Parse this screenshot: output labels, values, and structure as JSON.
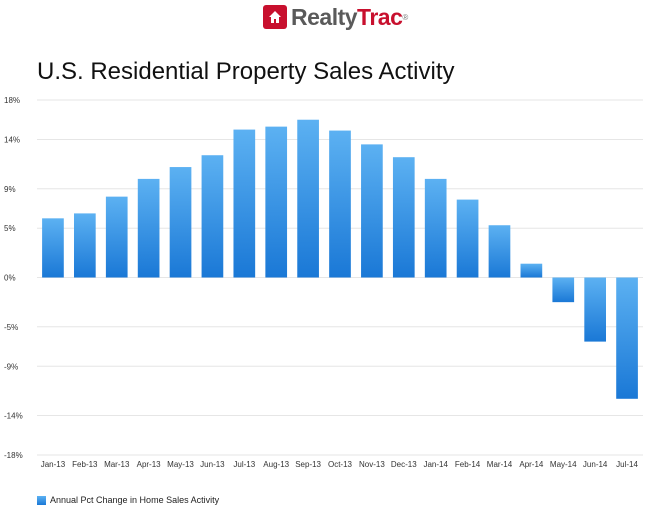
{
  "brand": {
    "name_part1": "Realty",
    "name_part2": "Trac",
    "reg_mark": "®",
    "accent_color": "#c8102e"
  },
  "chart_data": {
    "type": "bar",
    "title": "U.S. Residential Property Sales Activity",
    "xlabel": "",
    "ylabel": "",
    "categories": [
      "Jan-13",
      "Feb-13",
      "Mar-13",
      "Apr-13",
      "May-13",
      "Jun-13",
      "Jul-13",
      "Aug-13",
      "Sep-13",
      "Oct-13",
      "Nov-13",
      "Dec-13",
      "Jan-14",
      "Feb-14",
      "Mar-14",
      "Apr-14",
      "May-14",
      "Jun-14",
      "Jul-14"
    ],
    "series": [
      {
        "name": "Annual Pct Change in Home Sales Activity",
        "values": [
          6.0,
          6.5,
          8.2,
          10.0,
          11.2,
          12.4,
          15.0,
          15.3,
          16.0,
          14.9,
          13.5,
          12.2,
          10.0,
          7.9,
          5.3,
          1.4,
          -2.5,
          -6.5,
          -12.3
        ]
      }
    ],
    "yticks": [
      18,
      14,
      9,
      5,
      0,
      -5,
      -9,
      -14,
      -18
    ],
    "ytick_labels": [
      "18%",
      "14%",
      "9%",
      "5%",
      "0%",
      "-5%",
      "-9%",
      "-14%",
      "-18%"
    ],
    "ylim": [
      -18,
      18
    ],
    "grid": true,
    "legend_position": "bottom-left",
    "bar_color_top": "#5cb1f2",
    "bar_color_bottom": "#1a78d6"
  }
}
